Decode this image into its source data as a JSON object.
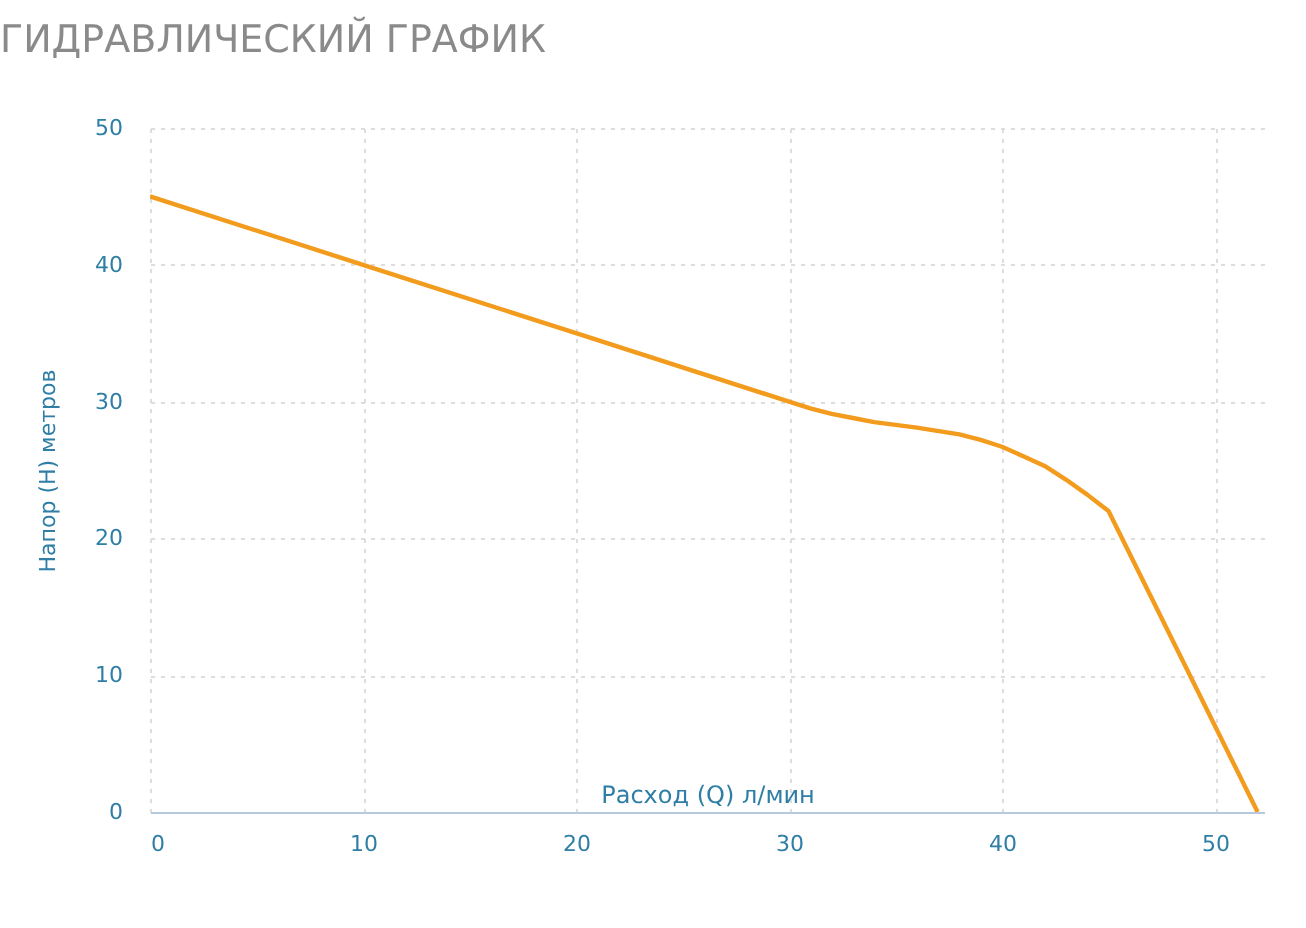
{
  "chart_data": {
    "type": "line",
    "title": "ГИДРАВЛИЧЕСКИЙ ГРАФИК",
    "xlabel": "Расход (Q) л/мин",
    "ylabel": "Напор (H) метров",
    "series": [
      {
        "color": "#f29b1d",
        "x": [
          0,
          10,
          20,
          30,
          31,
          32,
          33,
          34,
          36,
          38,
          39,
          40,
          41,
          42,
          43,
          44,
          45,
          52
        ],
        "values": [
          45,
          40,
          35,
          30,
          29.5,
          29.1,
          28.8,
          28.5,
          28.1,
          27.6,
          27.2,
          26.7,
          26,
          25.3,
          24.3,
          23.2,
          22,
          0
        ]
      }
    ],
    "xlim": [
      0,
      52.3
    ],
    "xticks": [
      0,
      10,
      20,
      30,
      40,
      50
    ],
    "ylim": [
      0,
      50
    ],
    "yticks": [
      0,
      10,
      20,
      30,
      40,
      50
    ],
    "grid": true,
    "marker": "none",
    "line_style": "solid"
  }
}
